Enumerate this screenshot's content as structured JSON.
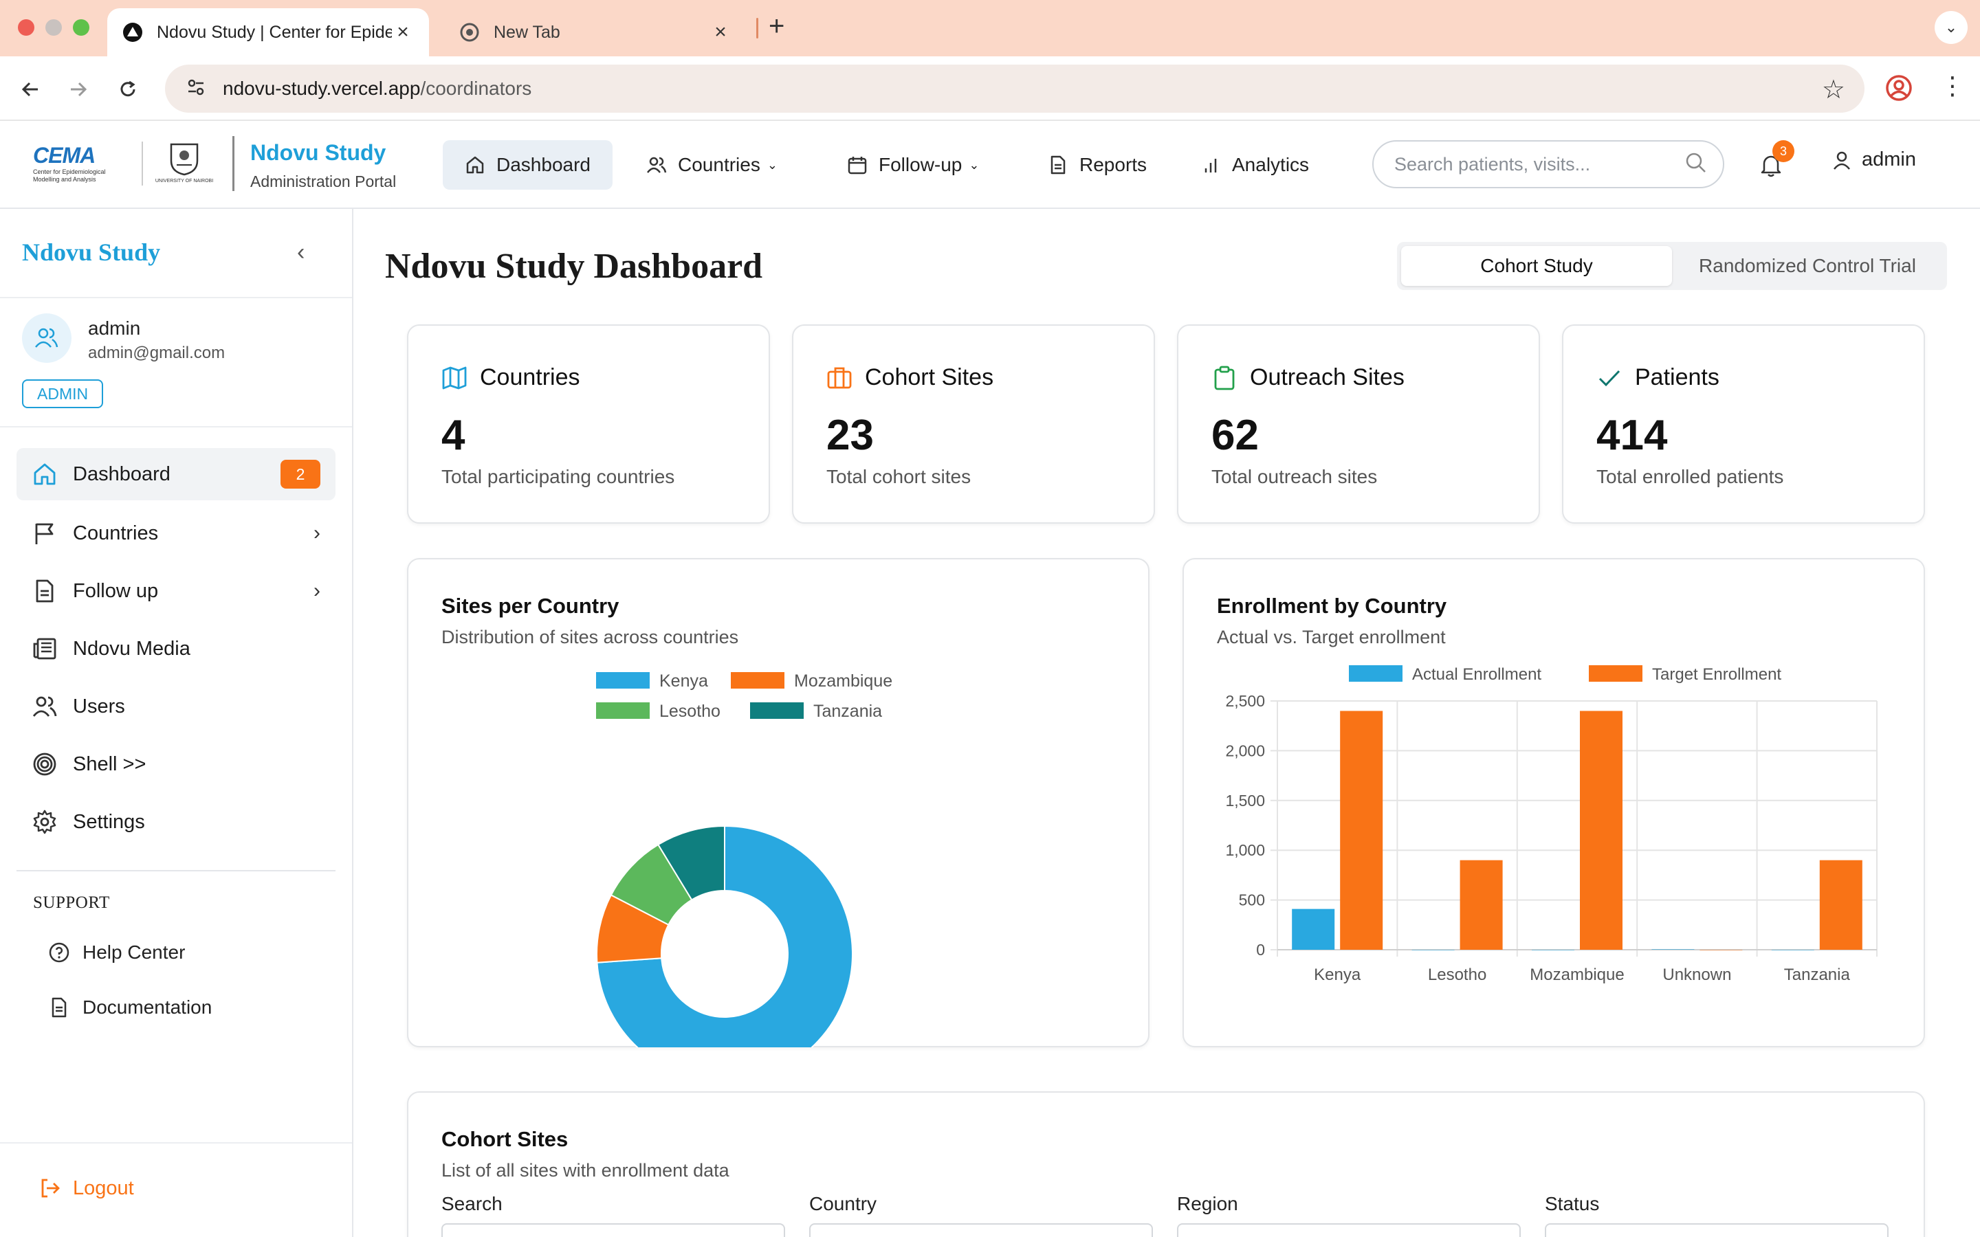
{
  "browser": {
    "tabs": [
      {
        "title": "Ndovu Study | Center for Epidemiological Modelling and Analysis",
        "active": true
      },
      {
        "title": "New Tab",
        "active": false
      }
    ],
    "url_host": "ndovu-study.vercel.app",
    "url_path": "/coordinators"
  },
  "header": {
    "logo_text": "CEMA",
    "logo_subtext_1": "Center for Epidemiological",
    "logo_subtext_2": "Modelling and Analysis",
    "uon_text": "UNIVERSITY OF NAIROBI",
    "brand_name": "Ndovu Study",
    "brand_sub": "Administration Portal",
    "nav": [
      {
        "label": "Dashboard",
        "icon": "home-icon",
        "active": true
      },
      {
        "label": "Countries",
        "icon": "users-icon",
        "dropdown": true
      },
      {
        "label": "Follow-up",
        "icon": "calendar-icon",
        "dropdown": true
      },
      {
        "label": "Reports",
        "icon": "document-icon"
      },
      {
        "label": "Analytics",
        "icon": "bar-chart-icon"
      }
    ],
    "search_placeholder": "Search patients, visits...",
    "notification_count": "3",
    "user": "admin"
  },
  "sidebar": {
    "title": "Ndovu Study",
    "user_name": "admin",
    "user_email": "admin@gmail.com",
    "user_role": "ADMIN",
    "items": [
      {
        "label": "Dashboard",
        "icon": "home-icon",
        "badge": "2"
      },
      {
        "label": "Countries",
        "icon": "flag-icon"
      },
      {
        "label": "Follow up",
        "icon": "document-icon"
      },
      {
        "label": "Ndovu Media",
        "icon": "newspaper-icon"
      },
      {
        "label": "Users",
        "icon": "users-icon"
      },
      {
        "label": "Shell >>",
        "icon": "spiral-icon"
      },
      {
        "label": "Settings",
        "icon": "gear-icon"
      }
    ],
    "support_heading": "SUPPORT",
    "support_items": [
      {
        "label": "Help Center",
        "icon": "help-circle-icon"
      },
      {
        "label": "Documentation",
        "icon": "document-icon"
      }
    ],
    "logout_label": "Logout"
  },
  "main": {
    "title": "Ndovu Study Dashboard",
    "segments": [
      "Cohort Study",
      "Randomized Control Trial"
    ],
    "stats": [
      {
        "title": "Countries",
        "value": "4",
        "caption": "Total participating countries",
        "icon": "map-icon",
        "color": "#1e9fd8"
      },
      {
        "title": "Cohort Sites",
        "value": "23",
        "caption": "Total cohort sites",
        "icon": "briefcase-icon",
        "color": "#f97316"
      },
      {
        "title": "Outreach Sites",
        "value": "62",
        "caption": "Total outreach sites",
        "icon": "clipboard-icon",
        "color": "#22a04b"
      },
      {
        "title": "Patients",
        "value": "414",
        "caption": "Total enrolled patients",
        "icon": "check-icon",
        "color": "#0f766e"
      }
    ],
    "sites_card": {
      "title": "Sites per Country",
      "subtitle": "Distribution of sites across countries"
    },
    "enrollment_card": {
      "title": "Enrollment by Country",
      "subtitle": "Actual vs. Target enrollment"
    },
    "cohort_card": {
      "title": "Cohort Sites",
      "subtitle": "List of all sites with enrollment data"
    },
    "filters": [
      "Search",
      "Country",
      "Region",
      "Status"
    ]
  },
  "chart_data": [
    {
      "type": "pie",
      "donut": true,
      "categories": [
        "Kenya",
        "Mozambique",
        "Lesotho",
        "Tanzania"
      ],
      "values": [
        17,
        2,
        2,
        2
      ],
      "colors": [
        "#29a8e0",
        "#f97316",
        "#5cb85c",
        "#0f7f7f"
      ],
      "legend": "top"
    },
    {
      "type": "bar",
      "categories": [
        "Kenya",
        "Lesotho",
        "Mozambique",
        "Unknown",
        "Tanzania"
      ],
      "series": [
        {
          "name": "Actual Enrollment",
          "values": [
            410,
            0,
            0,
            4,
            0
          ],
          "color": "#29a8e0"
        },
        {
          "name": "Target Enrollment",
          "values": [
            2400,
            900,
            2400,
            0,
            900
          ],
          "color": "#f97316"
        }
      ],
      "ylim": [
        0,
        2500
      ],
      "yticks": [
        "0",
        "500",
        "1,000",
        "1,500",
        "2,000",
        "2,500"
      ],
      "grid": true,
      "legend": "top"
    }
  ]
}
